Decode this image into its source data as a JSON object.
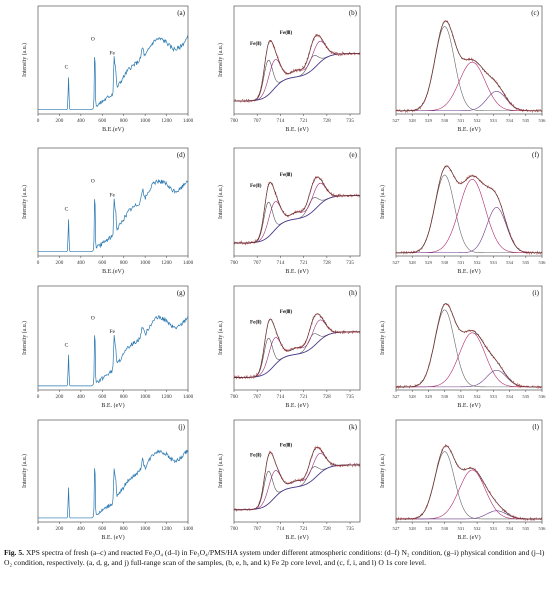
{
  "figure": {
    "caption_label": "Fig. 5.",
    "caption_text": "XPS spectra of fresh (a–c) and reacted Fe₃O₄ (d–l) in Fe₃O₄/PMS/HA system under different atmospheric conditions: (d–f) N₂ condition, (g–i) physical condition and (j–l) O₂ condition, respectively. (a, d, g, and j) full-range scan of the samples, (b, e, h, and k) Fe 2p core level, and (c, f, i, and l) O 1s core level."
  },
  "colors": {
    "survey": "#2a78b0",
    "raw": "#a8393a",
    "fit": "#333333",
    "fe2": "#555555",
    "fe3": "#9a2f7a",
    "bg": "#4a3a8a",
    "o1": "#666666",
    "o2": "#b02a6a",
    "o3": "#6a3a8a"
  },
  "chart_data": [
    {
      "type": "line",
      "panel": "a",
      "panel_label": "(a)",
      "ylabel": "Intensity (a.u.)",
      "xlabel": "B.E.(eV)",
      "xticks": [
        "0",
        "200",
        "400",
        "600",
        "800",
        "1000",
        "1200",
        "1400"
      ],
      "xlim": [
        0,
        1400
      ],
      "peak_labels": [
        {
          "text": "C",
          "x": 285
        },
        {
          "text": "O",
          "x": 530
        },
        {
          "text": "Fe",
          "x": 711
        }
      ]
    },
    {
      "type": "line",
      "panel": "b",
      "panel_label": "(b)",
      "ylabel": "Intensity (a.u.)",
      "xlabel": "B.E. (eV)",
      "xticks": [
        "700",
        "707",
        "714",
        "721",
        "728",
        "735"
      ],
      "xlim": [
        700,
        738
      ],
      "peak_labels": [
        {
          "text": "Fe(Ⅱ)",
          "x": 709.5
        },
        {
          "text": "Fe(Ⅲ)",
          "x": 712
        }
      ]
    },
    {
      "type": "line",
      "panel": "c",
      "panel_label": "(c)",
      "ylabel": "",
      "xlabel": "B.E. (eV)",
      "xticks": [
        "527",
        "528",
        "529",
        "530",
        "531",
        "532",
        "533",
        "534",
        "535",
        "536"
      ],
      "xlim": [
        527,
        536
      ]
    },
    {
      "type": "line",
      "panel": "d",
      "panel_label": "(d)",
      "ylabel": "Intensity (a.u.)",
      "xlabel": "B.E.(eV)",
      "xticks": [
        "0",
        "200",
        "400",
        "600",
        "800",
        "1000",
        "1200",
        "1400"
      ],
      "xlim": [
        0,
        1400
      ],
      "peak_labels": [
        {
          "text": "C",
          "x": 285
        },
        {
          "text": "O",
          "x": 530
        },
        {
          "text": "Fe",
          "x": 711
        }
      ]
    },
    {
      "type": "line",
      "panel": "e",
      "panel_label": "(e)",
      "ylabel": "Intensity (a.u.)",
      "xlabel": "B.E. (eV)",
      "xticks": [
        "700",
        "707",
        "714",
        "721",
        "728",
        "735"
      ],
      "xlim": [
        700,
        738
      ],
      "peak_labels": [
        {
          "text": "Fe(Ⅱ)",
          "x": 709.5
        },
        {
          "text": "Fe(Ⅲ)",
          "x": 712
        }
      ]
    },
    {
      "type": "line",
      "panel": "f",
      "panel_label": "(f)",
      "ylabel": "Intensity (a.u.)",
      "xlabel": "B.E. (eV)",
      "xticks": [
        "527",
        "528",
        "529",
        "530",
        "531",
        "532",
        "533",
        "534",
        "535",
        "536"
      ],
      "xlim": [
        527,
        536
      ]
    },
    {
      "type": "line",
      "panel": "g",
      "panel_label": "(g)",
      "ylabel": "Intensity (a.u.)",
      "xlabel": "B.E. (eV)",
      "xticks": [
        "0",
        "200",
        "400",
        "600",
        "800",
        "1000",
        "1200",
        "1400"
      ],
      "xlim": [
        0,
        1400
      ],
      "peak_labels": [
        {
          "text": "C",
          "x": 285
        },
        {
          "text": "O",
          "x": 530
        },
        {
          "text": "Fe",
          "x": 711
        }
      ]
    },
    {
      "type": "line",
      "panel": "h",
      "panel_label": "(h)",
      "ylabel": "Intensity (a.u.)",
      "xlabel": "B.E. (eV)",
      "xticks": [
        "700",
        "707",
        "714",
        "721",
        "728",
        "735"
      ],
      "xlim": [
        700,
        738
      ],
      "peak_labels": [
        {
          "text": "Fe(Ⅱ)",
          "x": 709.5
        },
        {
          "text": "Fe(Ⅲ)",
          "x": 712
        }
      ]
    },
    {
      "type": "line",
      "panel": "i",
      "panel_label": "(i)",
      "ylabel": "Intensity (a.u.)",
      "xlabel": "B.E. (eV)",
      "xticks": [
        "527",
        "528",
        "529",
        "530",
        "531",
        "532",
        "533",
        "534",
        "535",
        "536"
      ],
      "xlim": [
        527,
        536
      ]
    },
    {
      "type": "line",
      "panel": "j",
      "panel_label": "(j)",
      "ylabel": "Intensity (a.u.)",
      "xlabel": "B.E. (eV)",
      "xticks": [
        "0",
        "200",
        "400",
        "600",
        "800",
        "1000",
        "1200",
        "1400"
      ],
      "xlim": [
        0,
        1400
      ]
    },
    {
      "type": "line",
      "panel": "k",
      "panel_label": "(k)",
      "ylabel": "Intensity (a.u.)",
      "xlabel": "B.E. (eV)",
      "xticks": [
        "700",
        "707",
        "714",
        "721",
        "728",
        "735"
      ],
      "xlim": [
        700,
        738
      ],
      "peak_labels": [
        {
          "text": "Fe(Ⅱ)",
          "x": 709.5
        },
        {
          "text": "Fe(Ⅲ)",
          "x": 712
        }
      ]
    },
    {
      "type": "line",
      "panel": "l",
      "panel_label": "(l)",
      "ylabel": "Intensity (a.u.)",
      "xlabel": "B.E. (eV)",
      "xticks": [
        "527",
        "528",
        "529",
        "530",
        "531",
        "532",
        "533",
        "534",
        "535",
        "536"
      ],
      "xlim": [
        527,
        536
      ]
    }
  ]
}
